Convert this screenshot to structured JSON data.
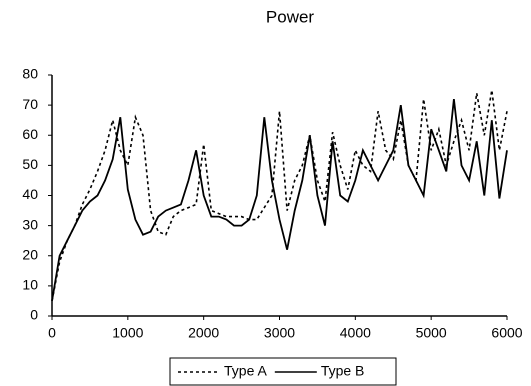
{
  "chart_data": {
    "type": "line",
    "title": "Power",
    "x": [
      0,
      100,
      200,
      300,
      400,
      500,
      600,
      700,
      800,
      900,
      1000,
      1100,
      1200,
      1300,
      1400,
      1500,
      1600,
      1700,
      1800,
      1900,
      2000,
      2100,
      2200,
      2300,
      2400,
      2500,
      2600,
      2700,
      2800,
      2900,
      3000,
      3100,
      3200,
      3300,
      3400,
      3500,
      3600,
      3700,
      3800,
      3900,
      4000,
      4100,
      4200,
      4300,
      4400,
      4500,
      4600,
      4700,
      4800,
      4900,
      5000,
      5100,
      5200,
      5300,
      5400,
      5500,
      5600,
      5700,
      5800,
      5900,
      6000
    ],
    "series": [
      {
        "name": "Type A",
        "color": "#000000",
        "dash": true,
        "values": [
          5,
          18,
          25,
          30,
          37,
          42,
          48,
          55,
          65,
          55,
          50,
          66,
          60,
          35,
          28,
          27,
          33,
          35,
          36,
          37,
          57,
          35,
          34,
          33,
          33,
          33,
          32,
          32,
          36,
          40,
          68,
          35,
          45,
          50,
          60,
          45,
          38,
          61,
          50,
          42,
          55,
          50,
          48,
          68,
          55,
          52,
          65,
          50,
          45,
          72,
          55,
          62,
          50,
          58,
          65,
          55,
          74,
          60,
          75,
          55,
          68
        ]
      },
      {
        "name": "Type B",
        "color": "#000000",
        "dash": false,
        "values": [
          5,
          20,
          25,
          30,
          35,
          38,
          40,
          45,
          52,
          66,
          42,
          32,
          27,
          28,
          33,
          35,
          36,
          37,
          45,
          55,
          40,
          33,
          33,
          32,
          30,
          30,
          32,
          40,
          66,
          45,
          32,
          22,
          35,
          45,
          60,
          40,
          30,
          58,
          40,
          38,
          45,
          55,
          50,
          45,
          50,
          55,
          70,
          50,
          45,
          40,
          62,
          55,
          48,
          72,
          50,
          45,
          58,
          40,
          65,
          39,
          55
        ]
      }
    ],
    "xlim": [
      0,
      6000
    ],
    "xticks": [
      0,
      1000,
      2000,
      3000,
      4000,
      5000,
      6000
    ],
    "ylim": [
      0,
      80
    ],
    "yticks": [
      0,
      10,
      20,
      30,
      40,
      50,
      60,
      70,
      80
    ],
    "grid": false,
    "legend": "bottom"
  }
}
